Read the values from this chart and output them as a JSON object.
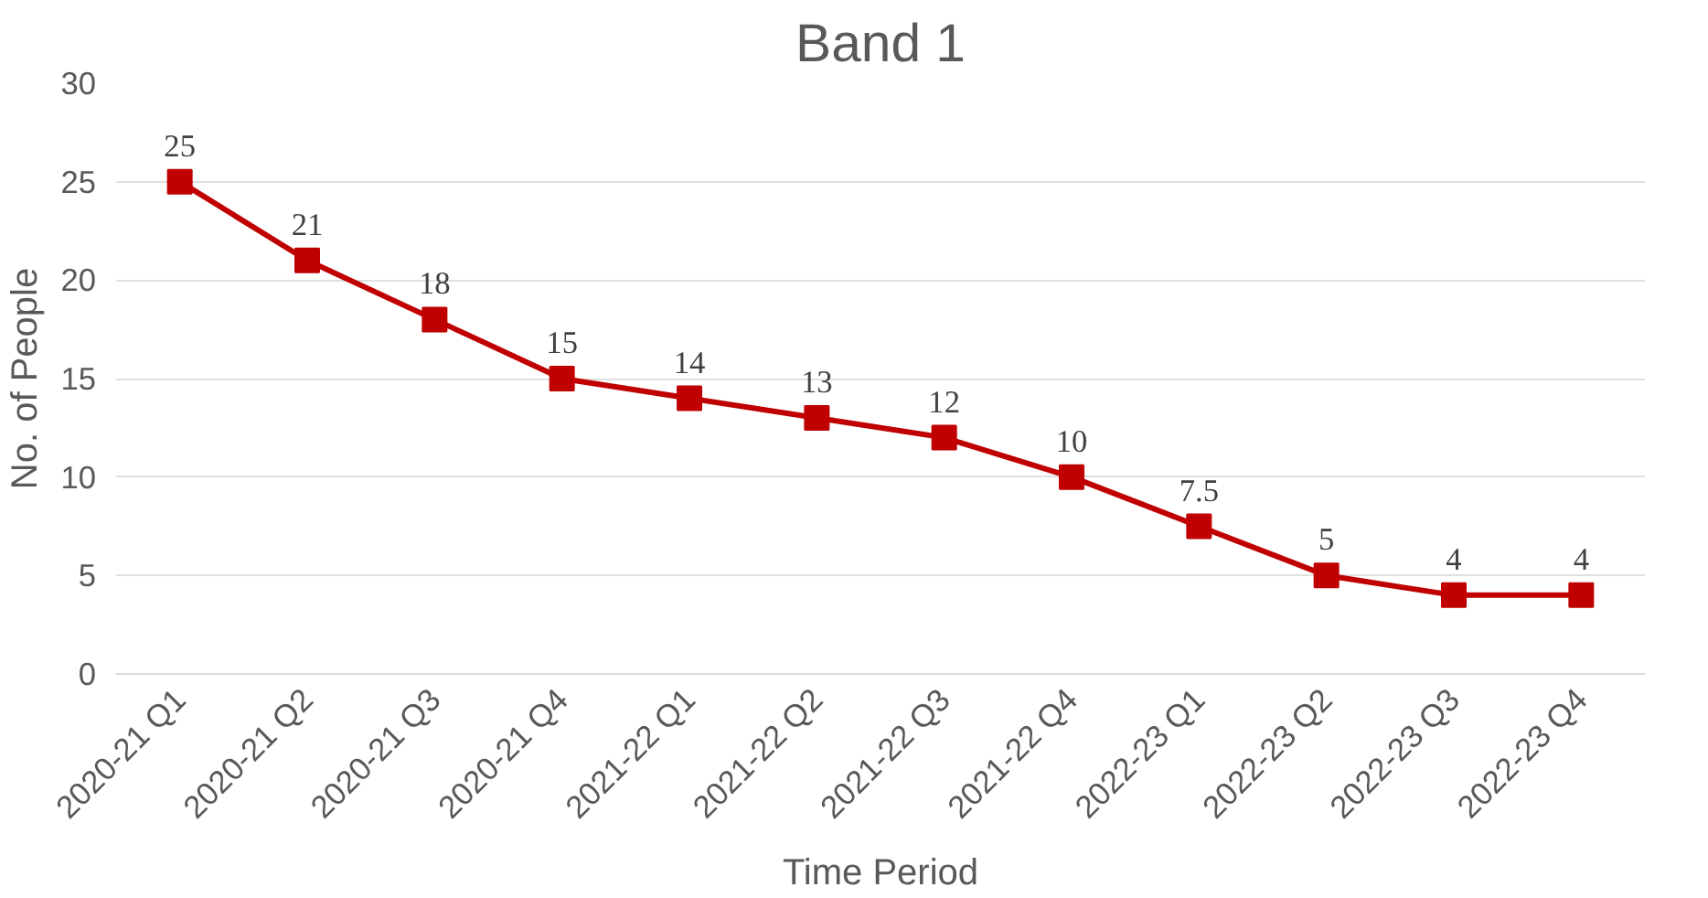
{
  "chart_data": {
    "type": "line",
    "title": "Band 1",
    "xlabel": "Time Period",
    "ylabel": "No. of People",
    "categories": [
      "2020-21 Q1",
      "2020-21 Q2",
      "2020-21 Q3",
      "2020-21 Q4",
      "2021-22 Q1",
      "2021-22 Q2",
      "2021-22 Q3",
      "2021-22 Q4",
      "2022-23 Q1",
      "2022-23 Q2",
      "2022-23 Q3",
      "2022-23 Q4"
    ],
    "series": [
      {
        "color": "#c00000",
        "values": [
          25,
          21,
          18,
          15,
          14,
          13,
          12,
          10,
          7.5,
          5,
          4,
          4
        ]
      }
    ],
    "ylim": [
      0,
      30
    ],
    "yticks": [
      0,
      5,
      10,
      15,
      20,
      25,
      30
    ],
    "grid": "y",
    "marker": "square",
    "line_style": "solid",
    "data_labels": true
  }
}
